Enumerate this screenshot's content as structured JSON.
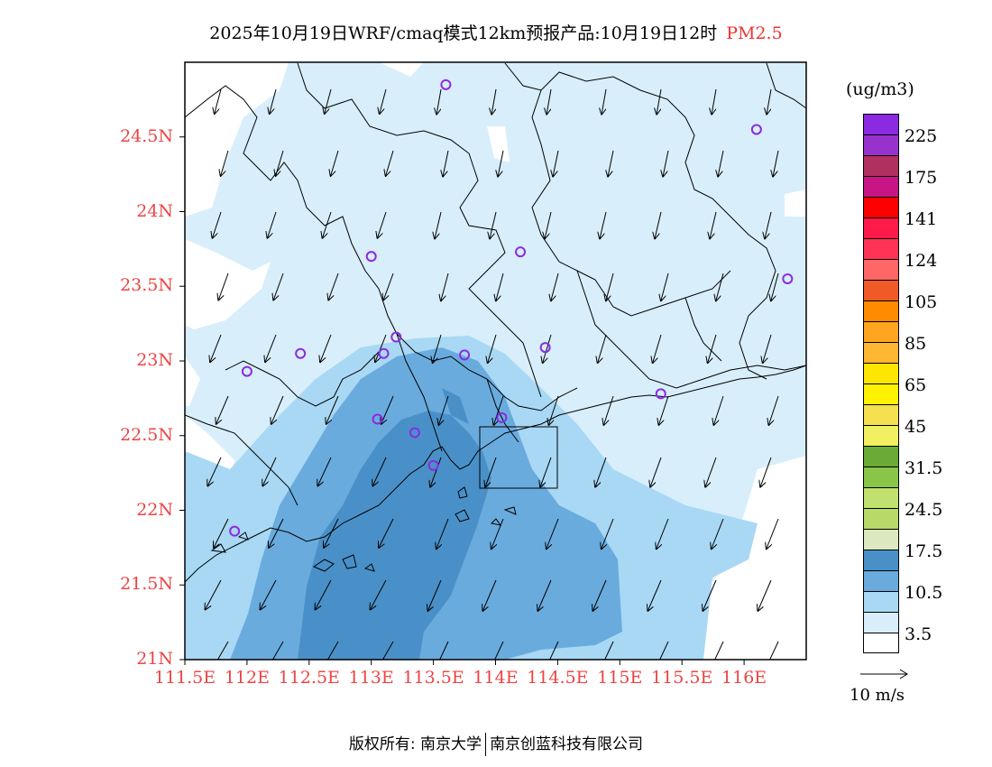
{
  "title": {
    "main": "2025年10月19日WRF/cmaq模式12km预报产品:10月19日12时",
    "pollutant": "PM2.5"
  },
  "axes": {
    "lat_labels": [
      "24.5N",
      "24N",
      "23.5N",
      "23N",
      "22.5N",
      "22N",
      "21.5N",
      "21N"
    ],
    "lon_labels": [
      "111.5E",
      "112E",
      "112.5E",
      "113E",
      "113.5E",
      "114E",
      "114.5E",
      "115E",
      "115.5E",
      "116E"
    ],
    "lat_range": [
      21,
      25
    ],
    "lon_range": [
      111.5,
      116.5
    ]
  },
  "legend": {
    "unit": "(ug/m3)",
    "labels": [
      "225",
      "175",
      "141",
      "124",
      "105",
      "85",
      "65",
      "45",
      "31.5",
      "24.5",
      "17.5",
      "10.5",
      "3.5"
    ],
    "colors": [
      "#8a2be2",
      "#9932cc",
      "#b03060",
      "#c71585",
      "#ff0000",
      "#ff1a4a",
      "#ff3355",
      "#ff6666",
      "#f05a28",
      "#ff8c00",
      "#ffa520",
      "#ffb732",
      "#ffe600",
      "#fff200",
      "#f5e050",
      "#f0f060",
      "#6aaa36",
      "#88c548",
      "#c0e070",
      "#b8d868",
      "#dce8c0",
      "#4a90c8",
      "#6aabde",
      "#a8d8f4",
      "#d8eefb",
      "#ffffff"
    ]
  },
  "vector_reference": {
    "label": "10 m/s"
  },
  "stations": [
    {
      "lon": 113.6,
      "lat": 24.85
    },
    {
      "lon": 116.1,
      "lat": 24.55
    },
    {
      "lon": 113.0,
      "lat": 23.7
    },
    {
      "lon": 114.2,
      "lat": 23.73
    },
    {
      "lon": 116.35,
      "lat": 23.55
    },
    {
      "lon": 113.2,
      "lat": 23.16
    },
    {
      "lon": 113.1,
      "lat": 23.05
    },
    {
      "lon": 113.75,
      "lat": 23.04
    },
    {
      "lon": 112.43,
      "lat": 23.05
    },
    {
      "lon": 112.0,
      "lat": 22.93
    },
    {
      "lon": 114.4,
      "lat": 23.09
    },
    {
      "lon": 115.33,
      "lat": 22.78
    },
    {
      "lon": 113.05,
      "lat": 22.61
    },
    {
      "lon": 113.35,
      "lat": 22.52
    },
    {
      "lon": 114.05,
      "lat": 22.62
    },
    {
      "lon": 113.5,
      "lat": 22.3
    },
    {
      "lon": 111.9,
      "lat": 21.86
    }
  ],
  "footer": {
    "left": "版权所有: 南京大学",
    "right": "南京创蓝科技有限公司"
  }
}
